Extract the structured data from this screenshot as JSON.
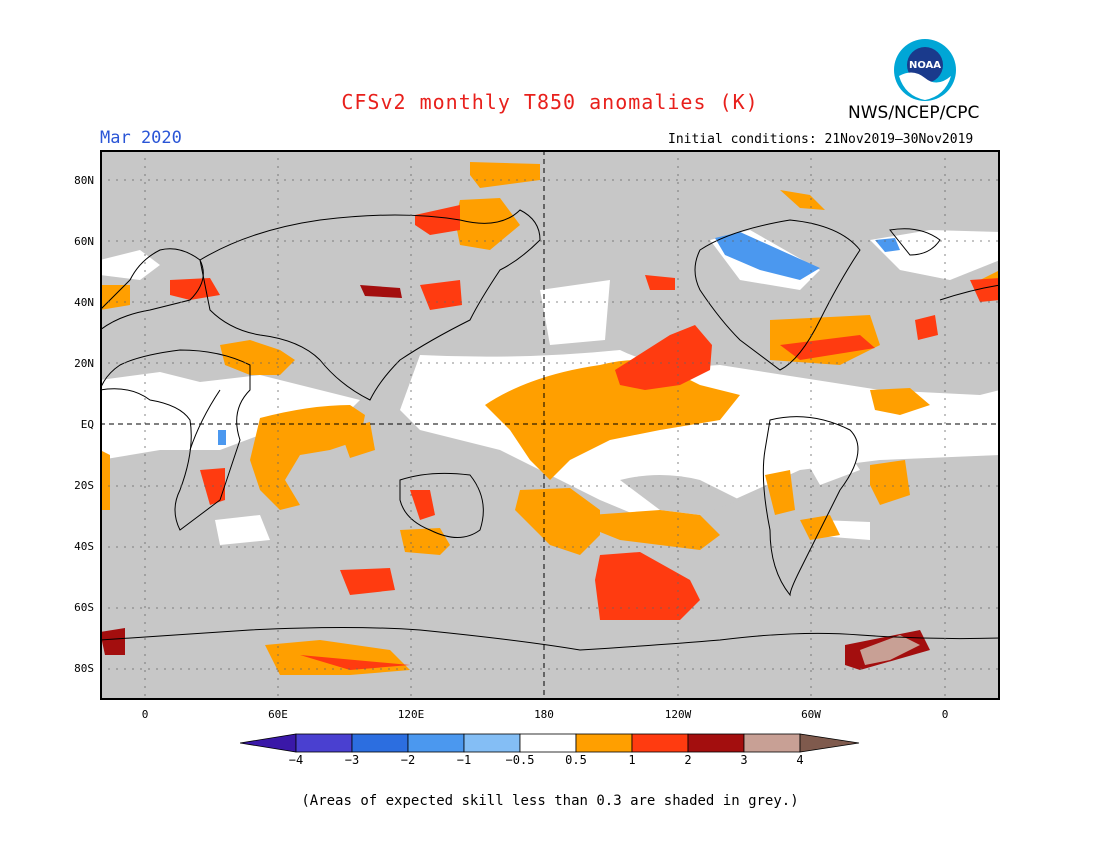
{
  "title": "CFSv2 monthly T850 anomalies (K)",
  "valid_month": "Mar 2020",
  "agency": "NWS/NCEP/CPC",
  "logo_text": "NOAA",
  "initial_conditions": "Initial conditions: 21Nov2019–30Nov2019",
  "lat_labels": [
    "80N",
    "60N",
    "40N",
    "20N",
    "EQ",
    "20S",
    "40S",
    "60S",
    "80S"
  ],
  "lon_labels": [
    "0",
    "60E",
    "120E",
    "180",
    "120W",
    "60W",
    "0"
  ],
  "colorbar_labels": [
    "−4",
    "−3",
    "−2",
    "−1",
    "−0.5",
    "0.5",
    "1",
    "2",
    "3",
    "4"
  ],
  "colorbar_colors": [
    "#3a18a8",
    "#4a40d0",
    "#2c6ee0",
    "#4b98ef",
    "#84bef5",
    "#ffffff",
    "#ff9f00",
    "#ff3b10",
    "#a30e0e",
    "#c8a095",
    "#7f5a4d"
  ],
  "footnote": "(Areas of expected skill less than 0.3 are shaded in grey.)",
  "colors": {
    "skill_grey": "#c7c7c7",
    "title_red": "#e8201c",
    "month_blue": "#2a55d6"
  }
}
